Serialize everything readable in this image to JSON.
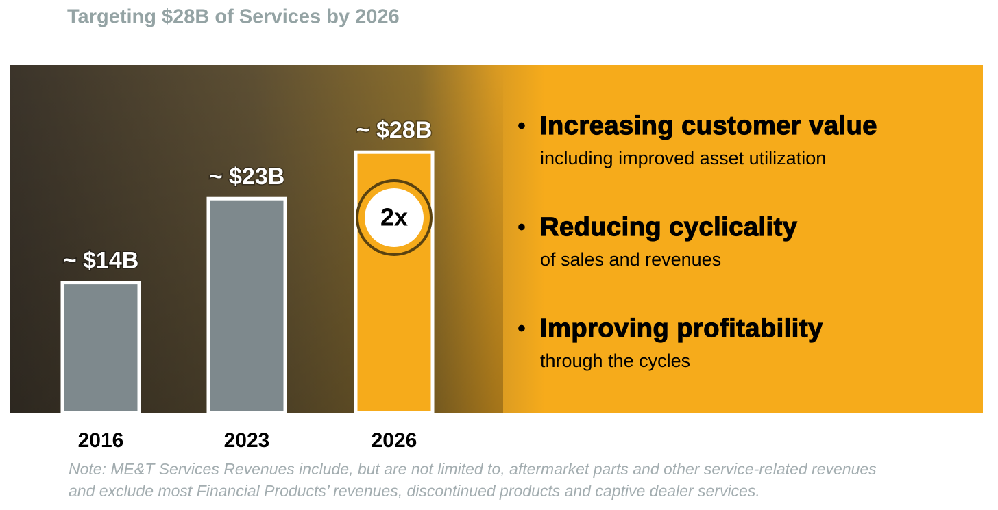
{
  "chart_data": {
    "type": "bar",
    "title": "Targeting $28B of Services by 2026",
    "categories": [
      "2016",
      "2023",
      "2026"
    ],
    "values": [
      14,
      23,
      28
    ],
    "value_labels": [
      "~ $14B",
      "~ $23B",
      "~ $28B"
    ],
    "colors": [
      "#7e898d",
      "#7e898d",
      "#f6ab1b"
    ],
    "annotation": "2x",
    "bullets": [
      {
        "heading": "Increasing customer value",
        "text": "including improved asset utilization"
      },
      {
        "heading": "Reducing cyclicality",
        "text": "of sales and revenues"
      },
      {
        "heading": "Improving profitability",
        "text": "through the cycles"
      }
    ],
    "note": [
      "Note: ME&T Services Revenues include, but are not limited to, aftermarket parts and other service-related revenues",
      "and exclude most Financial Products’ revenues, discontinued products and captive dealer services."
    ]
  }
}
